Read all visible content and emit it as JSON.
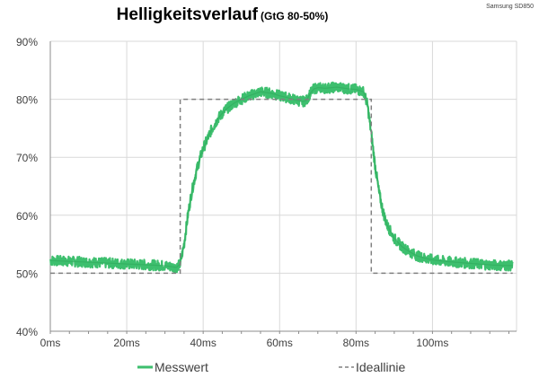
{
  "chart_data": {
    "type": "line",
    "title": "Helligkeitsverlauf",
    "subtitle": "(GtG 80-50%)",
    "corner_note": "Samsung SD850",
    "xlabel": "",
    "ylabel": "",
    "xlim": [
      0,
      122
    ],
    "ylim": [
      40,
      90
    ],
    "grid": true,
    "legend_position": "bottom",
    "x_ticks": [
      0,
      20,
      40,
      60,
      80,
      100
    ],
    "x_tick_labels": [
      "0ms",
      "20ms",
      "40ms",
      "60ms",
      "80ms",
      "100ms"
    ],
    "y_ticks": [
      40,
      50,
      60,
      70,
      80,
      90
    ],
    "y_tick_labels": [
      "40%",
      "50%",
      "60%",
      "70%",
      "80%",
      "90%"
    ],
    "series": [
      {
        "name": "Messwert",
        "color": "#3dbf6e",
        "style": "solid-noisy",
        "x": [
          0,
          10,
          20,
          30,
          33,
          34,
          35,
          36,
          37,
          38,
          39,
          40,
          42,
          44,
          46,
          48,
          50,
          52,
          55,
          58,
          60,
          62,
          64,
          66,
          67,
          68,
          69,
          70,
          72,
          75,
          78,
          80,
          82,
          83,
          84,
          85,
          86,
          87,
          88,
          90,
          92,
          94,
          96,
          98,
          100,
          104,
          108,
          112,
          116,
          121
        ],
        "values": [
          52.2,
          51.9,
          51.6,
          51.3,
          51.0,
          51.6,
          55.0,
          60.0,
          64.0,
          67.0,
          69.5,
          71.5,
          74.5,
          76.8,
          78.3,
          79.3,
          80.0,
          80.6,
          81.3,
          81.0,
          80.6,
          80.3,
          79.9,
          79.6,
          79.8,
          81.0,
          81.8,
          82.0,
          81.9,
          82.1,
          81.8,
          81.7,
          81.3,
          79.0,
          74.0,
          68.5,
          64.0,
          60.8,
          58.5,
          56.0,
          54.6,
          53.7,
          53.0,
          52.6,
          52.3,
          52.0,
          51.8,
          51.6,
          51.4,
          51.3
        ]
      },
      {
        "name": "Ideallinie",
        "color": "#808080",
        "style": "dashed",
        "x": [
          0,
          34,
          34,
          84,
          84,
          121
        ],
        "values": [
          50,
          50,
          80,
          80,
          50,
          50
        ]
      }
    ]
  }
}
